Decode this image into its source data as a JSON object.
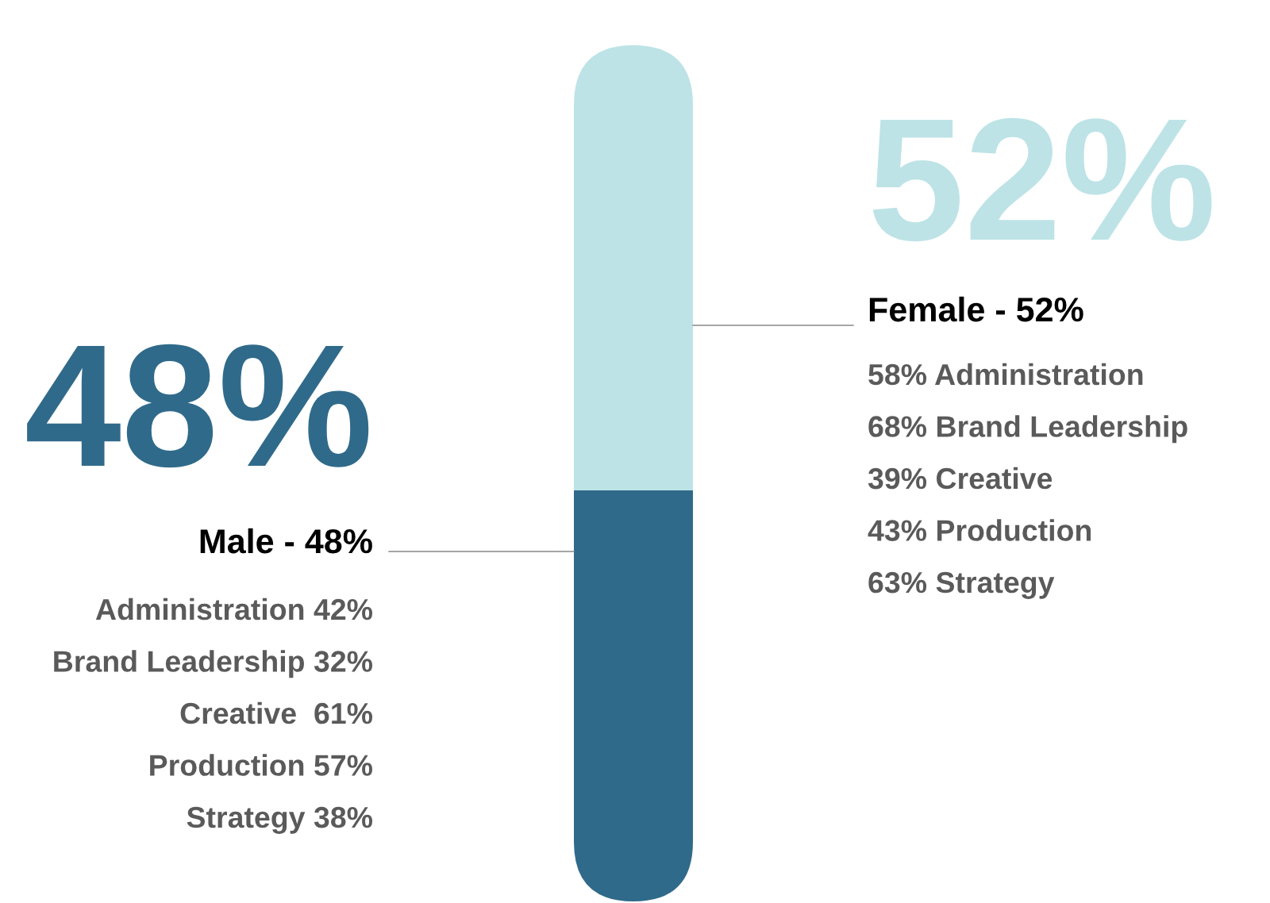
{
  "chart_data": {
    "type": "bar",
    "stacked": true,
    "categories": [
      null
    ],
    "tick_labels": false,
    "series": [
      {
        "name": "Male - 48%",
        "color": "#306a8a",
        "values": [
          48
        ],
        "value_labels": [
          "48%"
        ]
      },
      {
        "name": "Female - 52%",
        "color": "#bde3e6",
        "values": [
          52
        ],
        "value_labels": [
          "52%"
        ]
      }
    ],
    "annotations": [
      "Administration 42%",
      "Brand Leadership 32%",
      "Creative  61%",
      "Production 57%",
      "Strategy 38%",
      "58% Administration",
      "68% Brand Leadership",
      "39% Creative",
      "43% Production",
      "63% Strategy"
    ]
  }
}
